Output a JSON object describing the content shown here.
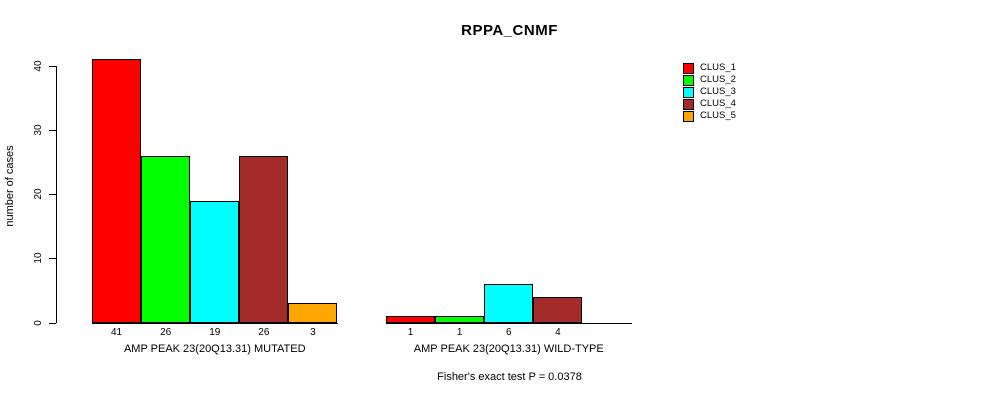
{
  "title": "RPPA_CNMF",
  "y_axis_label": "number of cases",
  "footer": "Fisher's exact test P = 0.0378",
  "legend": {
    "items": [
      {
        "label": "CLUS_1",
        "color": "#FF0000"
      },
      {
        "label": "CLUS_2",
        "color": "#00FF00"
      },
      {
        "label": "CLUS_3",
        "color": "#00FFFF"
      },
      {
        "label": "CLUS_4",
        "color": "#A52A2A"
      },
      {
        "label": "CLUS_5",
        "color": "#FFA500"
      }
    ]
  },
  "chart_data": {
    "type": "bar",
    "title": "RPPA_CNMF",
    "xlabel": "",
    "ylabel": "number of cases",
    "ylim": [
      0,
      41
    ],
    "yticks": [
      0,
      10,
      20,
      30,
      40
    ],
    "grid": false,
    "legend_position": "top-right",
    "series_names": [
      "CLUS_1",
      "CLUS_2",
      "CLUS_3",
      "CLUS_4",
      "CLUS_5"
    ],
    "colors": [
      "#FF0000",
      "#00FF00",
      "#00FFFF",
      "#A52A2A",
      "#FFA500"
    ],
    "groups": [
      {
        "label": "AMP PEAK 23(20Q13.31) MUTATED",
        "values": [
          41,
          26,
          19,
          26,
          3
        ]
      },
      {
        "label": "AMP PEAK 23(20Q13.31) WILD-TYPE",
        "values": [
          1,
          1,
          6,
          4,
          0
        ]
      }
    ],
    "bar_value_labels": [
      [
        "41",
        "26",
        "19",
        "26",
        "3"
      ],
      [
        "1",
        "1",
        "6",
        "4",
        ""
      ]
    ],
    "annotation": "Fisher's exact test P = 0.0378"
  }
}
